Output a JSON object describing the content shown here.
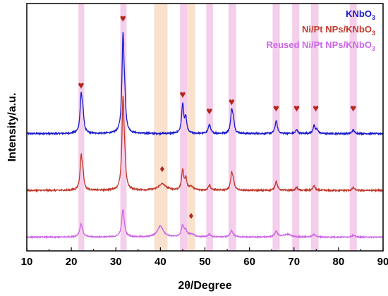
{
  "chart_data": {
    "type": "line",
    "title": "",
    "xlabel": "2θ/Degree",
    "ylabel": "Intensity/a.u.",
    "xlim": [
      10,
      90
    ],
    "x_ticks": [
      10,
      20,
      30,
      40,
      50,
      60,
      70,
      80,
      90
    ],
    "y_ticks_visible": false,
    "grid": false,
    "legend_position": "top-right",
    "legend_layout": "text-only colored labels",
    "series": [
      {
        "name": "KNbO3",
        "name_parts": {
          "base": "KNbO",
          "sub": "3"
        },
        "color": "#1a1acc",
        "baseline": 0.64,
        "noise": 0.004,
        "peaks": [
          {
            "x": 22.2,
            "height": 0.2,
            "width": 0.28
          },
          {
            "x": 22.6,
            "height": 0.09,
            "width": 0.25
          },
          {
            "x": 31.6,
            "height": 0.52,
            "width": 0.28
          },
          {
            "x": 32.0,
            "height": 0.12,
            "width": 0.25
          },
          {
            "x": 45.0,
            "height": 0.16,
            "width": 0.28
          },
          {
            "x": 45.7,
            "height": 0.08,
            "width": 0.25
          },
          {
            "x": 51.0,
            "height": 0.05,
            "width": 0.3
          },
          {
            "x": 56.0,
            "height": 0.12,
            "width": 0.28
          },
          {
            "x": 56.4,
            "height": 0.06,
            "width": 0.25
          },
          {
            "x": 66.0,
            "height": 0.07,
            "width": 0.3
          },
          {
            "x": 70.6,
            "height": 0.02,
            "width": 0.3
          },
          {
            "x": 74.5,
            "height": 0.04,
            "width": 0.3
          },
          {
            "x": 75.2,
            "height": 0.02,
            "width": 0.3
          },
          {
            "x": 83.3,
            "height": 0.02,
            "width": 0.3
          }
        ]
      },
      {
        "name": "Ni/Pt NPs/KNbO3",
        "name_parts": {
          "base": "Ni/Pt NPs/KNbO",
          "sub": "3"
        },
        "color": "#c0392b",
        "baseline": 0.33,
        "noise": 0.004,
        "peaks": [
          {
            "x": 22.2,
            "height": 0.18,
            "width": 0.28
          },
          {
            "x": 22.6,
            "height": 0.07,
            "width": 0.25
          },
          {
            "x": 31.6,
            "height": 0.49,
            "width": 0.28
          },
          {
            "x": 32.0,
            "height": 0.1,
            "width": 0.25
          },
          {
            "x": 40.4,
            "height": 0.035,
            "width": 1.0
          },
          {
            "x": 45.0,
            "height": 0.11,
            "width": 0.28
          },
          {
            "x": 45.7,
            "height": 0.06,
            "width": 0.25
          },
          {
            "x": 46.9,
            "height": 0.02,
            "width": 0.6
          },
          {
            "x": 51.0,
            "height": 0.03,
            "width": 0.3
          },
          {
            "x": 56.0,
            "height": 0.09,
            "width": 0.28
          },
          {
            "x": 56.4,
            "height": 0.04,
            "width": 0.25
          },
          {
            "x": 66.0,
            "height": 0.05,
            "width": 0.3
          },
          {
            "x": 70.6,
            "height": 0.015,
            "width": 0.3
          },
          {
            "x": 74.5,
            "height": 0.025,
            "width": 0.3
          },
          {
            "x": 83.3,
            "height": 0.015,
            "width": 0.3
          }
        ]
      },
      {
        "name": "Reused Ni/Pt NPs/KNbO3",
        "name_parts": {
          "base": "Reused Ni/Pt NPs/KNbO",
          "sub": "3"
        },
        "color": "#cc66e6",
        "baseline": 0.075,
        "noise": 0.003,
        "peaks": [
          {
            "x": 22.2,
            "height": 0.07,
            "width": 0.4
          },
          {
            "x": 31.6,
            "height": 0.15,
            "width": 0.35
          },
          {
            "x": 40.0,
            "height": 0.06,
            "width": 0.8
          },
          {
            "x": 45.0,
            "height": 0.06,
            "width": 0.35
          },
          {
            "x": 45.7,
            "height": 0.03,
            "width": 0.35
          },
          {
            "x": 47.0,
            "height": 0.015,
            "width": 0.7
          },
          {
            "x": 51.0,
            "height": 0.015,
            "width": 0.4
          },
          {
            "x": 56.0,
            "height": 0.035,
            "width": 0.4
          },
          {
            "x": 66.0,
            "height": 0.03,
            "width": 0.4
          },
          {
            "x": 68.5,
            "height": 0.015,
            "width": 1.0
          },
          {
            "x": 74.5,
            "height": 0.015,
            "width": 0.4
          },
          {
            "x": 83.3,
            "height": 0.01,
            "width": 0.4
          }
        ]
      }
    ],
    "highlight_bands": [
      {
        "x1": 21.6,
        "x2": 22.9,
        "color": "#f2c6e6"
      },
      {
        "x1": 31.0,
        "x2": 32.4,
        "color": "#f2c6e6"
      },
      {
        "x1": 38.6,
        "x2": 41.6,
        "color": "#f8dcc6"
      },
      {
        "x1": 44.4,
        "x2": 46.0,
        "color": "#f2c6e6"
      },
      {
        "x1": 46.0,
        "x2": 47.8,
        "color": "#f8dcc6"
      },
      {
        "x1": 50.3,
        "x2": 51.8,
        "color": "#f2c6e6"
      },
      {
        "x1": 55.3,
        "x2": 57.0,
        "color": "#f2c6e6"
      },
      {
        "x1": 65.2,
        "x2": 66.8,
        "color": "#f2c6e6"
      },
      {
        "x1": 69.6,
        "x2": 71.2,
        "color": "#f2c6e6"
      },
      {
        "x1": 73.8,
        "x2": 75.5,
        "color": "#f2c6e6"
      },
      {
        "x1": 82.5,
        "x2": 84.1,
        "color": "#f2c6e6"
      }
    ],
    "markers": [
      {
        "symbol": "heart",
        "glyph": "♥",
        "x": 22.2,
        "y": 0.885
      },
      {
        "symbol": "heart",
        "glyph": "♥",
        "x": 31.6,
        "y": 1.25
      },
      {
        "symbol": "heart",
        "glyph": "♥",
        "x": 45.0,
        "y": 0.835
      },
      {
        "symbol": "heart",
        "glyph": "♥",
        "x": 51.0,
        "y": 0.745
      },
      {
        "symbol": "heart",
        "glyph": "♥",
        "x": 56.0,
        "y": 0.795
      },
      {
        "symbol": "heart",
        "glyph": "♥",
        "x": 66.0,
        "y": 0.76
      },
      {
        "symbol": "heart",
        "glyph": "♥",
        "x": 70.6,
        "y": 0.76
      },
      {
        "symbol": "heart",
        "glyph": "♥",
        "x": 74.9,
        "y": 0.76
      },
      {
        "symbol": "heart",
        "glyph": "♥",
        "x": 83.3,
        "y": 0.76
      },
      {
        "symbol": "diamond",
        "glyph": "♦",
        "x": 40.4,
        "y": 0.43
      },
      {
        "symbol": "diamond",
        "glyph": "♦",
        "x": 46.9,
        "y": 0.175
      }
    ],
    "ylim": [
      0,
      1.35
    ]
  }
}
